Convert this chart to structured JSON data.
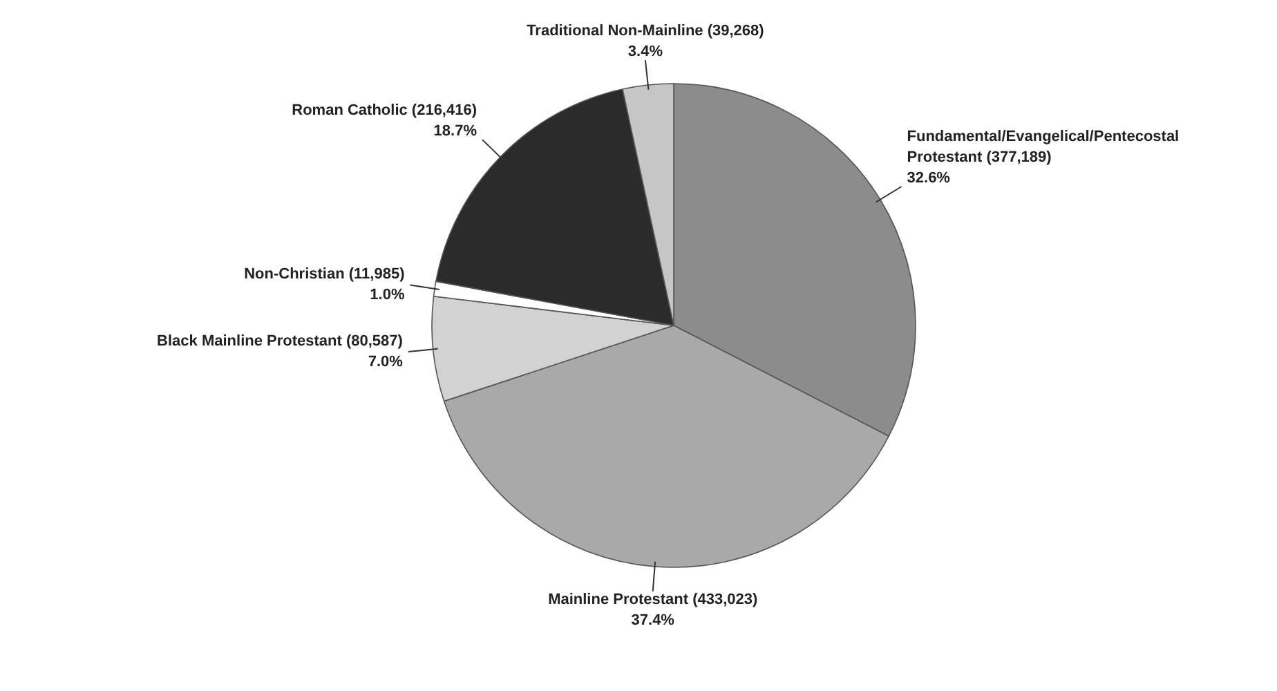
{
  "chart_data": {
    "type": "pie",
    "categories": [
      "Fundamental/Evangelical/Pentecostal Protestant (377,189)",
      "Mainline Protestant (433,023)",
      "Black Mainline Protestant (80,587)",
      "Non-Christian (11,985)",
      "Roman Catholic (216,416)",
      "Traditional Non-Mainline (39,268)"
    ],
    "values": [
      32.6,
      37.4,
      7.0,
      1.0,
      18.7,
      3.4
    ],
    "value_labels": [
      "32.6%",
      "37.4%",
      "7.0%",
      "1.0%",
      "18.7%",
      "3.4%"
    ],
    "colors": [
      "#8c8c8c",
      "#a9a9a9",
      "#d2d2d2",
      "#ffffff",
      "#2b2b2b",
      "#c6c6c6"
    ]
  }
}
